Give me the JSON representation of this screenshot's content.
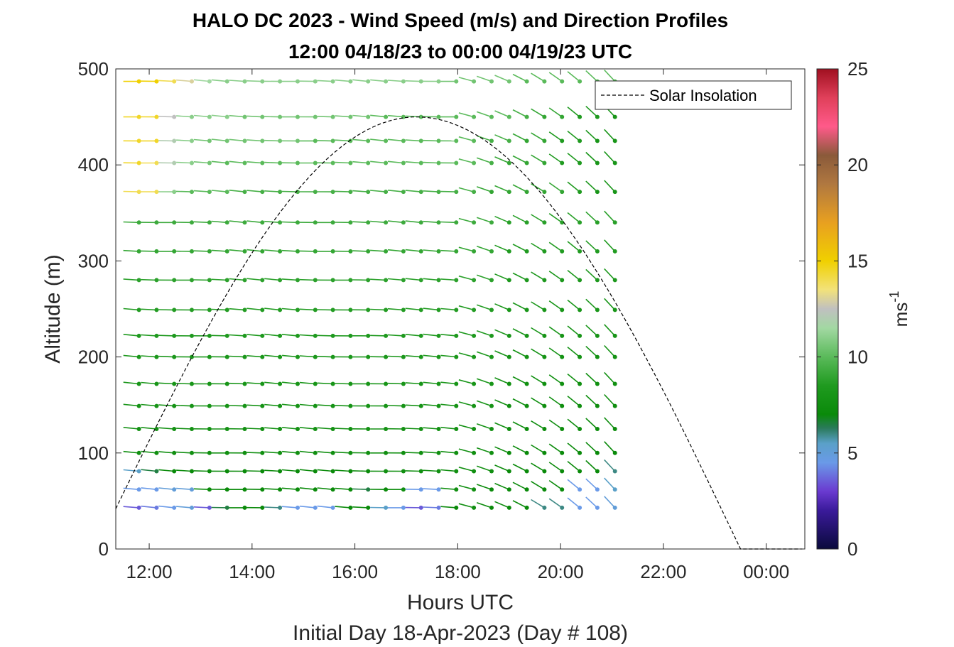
{
  "chart_data": {
    "type": "wind-barb-profile",
    "title": "HALO DC 2023 - Wind Speed (m/s) and Direction Profiles",
    "subtitle": "12:00 04/18/23 to 00:00 04/19/23  UTC",
    "xlabel": "Hours UTC",
    "xlabel2": "Initial Day 18-Apr-2023 (Day # 108)",
    "ylabel": "Altitude (m)",
    "x_tick_labels": [
      "12:00",
      "14:00",
      "16:00",
      "18:00",
      "20:00",
      "22:00",
      "00:00"
    ],
    "x_ticks_hours": [
      12,
      14,
      16,
      18,
      20,
      22,
      24
    ],
    "xlim_hours": [
      11.35,
      24.75
    ],
    "ylim": [
      0,
      500
    ],
    "y_ticks": [
      0,
      100,
      200,
      300,
      400,
      500
    ],
    "colorbar": {
      "label": "ms",
      "label_exponent": "-1",
      "range": [
        0,
        25
      ],
      "ticks": [
        0,
        5,
        10,
        15,
        20,
        25
      ],
      "stops": [
        {
          "v": 0,
          "color": "#0a0a3c"
        },
        {
          "v": 2,
          "color": "#3a1a9a"
        },
        {
          "v": 3,
          "color": "#6a3ad0"
        },
        {
          "v": 4.5,
          "color": "#6a9ae8"
        },
        {
          "v": 5.5,
          "color": "#5aa0c8"
        },
        {
          "v": 6.3,
          "color": "#2a7a5a"
        },
        {
          "v": 7,
          "color": "#0a8a0a"
        },
        {
          "v": 8.5,
          "color": "#1f9a1f"
        },
        {
          "v": 10,
          "color": "#5aba5a"
        },
        {
          "v": 11.5,
          "color": "#a2d8a2"
        },
        {
          "v": 12.5,
          "color": "#c0c0c0"
        },
        {
          "v": 13.5,
          "color": "#f2e27a"
        },
        {
          "v": 15,
          "color": "#f0d000"
        },
        {
          "v": 17,
          "color": "#e8a020"
        },
        {
          "v": 19,
          "color": "#b07840"
        },
        {
          "v": 20.5,
          "color": "#8a5a3a"
        },
        {
          "v": 22,
          "color": "#ff5a8a"
        },
        {
          "v": 23.5,
          "color": "#e0405a"
        },
        {
          "v": 25,
          "color": "#a01020"
        }
      ]
    },
    "legend": {
      "label": "Solar Insolation",
      "placement": "top-right"
    },
    "solar_insolation": {
      "x_hours": [
        11.35,
        17.2,
        23.5,
        24.7
      ],
      "y_altitude": [
        42,
        450,
        0,
        0
      ]
    },
    "altitudes": [
      43,
      62,
      81,
      100,
      125,
      149,
      172,
      200,
      222,
      249,
      280,
      310,
      340,
      372,
      402,
      425,
      450,
      487
    ],
    "time_hours_start": 11.8,
    "time_hours_step": 0.3,
    "time_steps": 34,
    "speed_profile_low": [
      {
        "h": 43,
        "s": [
          3.5,
          4,
          4.5,
          5,
          3.5,
          6.5,
          7,
          7,
          6,
          4.5,
          4.5,
          4.5,
          7,
          7,
          5.5,
          4.5,
          3.5,
          4,
          7,
          7.5,
          7,
          7,
          7,
          6,
          6,
          4.5,
          4.5,
          5
        ]
      },
      {
        "h": 62,
        "s": [
          4.5,
          4.5,
          5,
          5,
          7,
          7,
          7,
          7,
          7,
          7,
          7,
          7,
          7,
          6.5,
          7,
          7.5,
          4.5,
          4.5,
          7.5,
          7.5,
          7,
          7,
          7,
          7,
          7,
          4.5,
          4.5,
          5.5
        ]
      },
      {
        "h": 81,
        "s": [
          5.5,
          6.5,
          7,
          7,
          7,
          7,
          7,
          7,
          7,
          7,
          7,
          7,
          7,
          7,
          7.5,
          7.5,
          7.5,
          7.5,
          7.5,
          7.5,
          7.5,
          7,
          7,
          7,
          7,
          7,
          7,
          6
        ]
      }
    ],
    "speed_profile_top": [
      {
        "h": 372,
        "s": [
          14,
          14,
          11,
          10,
          10,
          10,
          9.5,
          9.5,
          9.5,
          9.5,
          9.5,
          9.5,
          9.5,
          9.5,
          9.5,
          9.5,
          9.5,
          9.5,
          9.5,
          9.5,
          9,
          9,
          9,
          9,
          9,
          8.5,
          8,
          8
        ]
      },
      {
        "h": 402,
        "s": [
          14.5,
          14,
          12,
          11,
          10.5,
          10,
          10,
          10,
          10,
          10,
          10,
          10,
          10,
          10,
          10,
          10,
          10,
          10,
          10,
          10,
          9.5,
          9,
          9,
          9,
          8.5,
          8.5,
          8,
          8
        ]
      },
      {
        "h": 425,
        "s": [
          14.5,
          14.5,
          12,
          11,
          10.5,
          10.5,
          10.5,
          10.5,
          10.5,
          10.5,
          10,
          10,
          10,
          10,
          10,
          10,
          10,
          10,
          10,
          10,
          9.5,
          9.5,
          9,
          9,
          8.5,
          8.5,
          8,
          8
        ]
      },
      {
        "h": 450,
        "s": [
          14.5,
          14.5,
          12.5,
          11,
          11,
          11,
          10.5,
          10.5,
          10.5,
          10.5,
          10.5,
          10.5,
          10.5,
          10.5,
          10,
          10,
          10,
          10,
          10,
          10,
          10,
          10,
          9.5,
          9,
          9,
          8.5,
          8.5,
          8
        ]
      },
      {
        "h": 487,
        "s": [
          15,
          15,
          14,
          13,
          11.5,
          11,
          11,
          11,
          11,
          11,
          11,
          11,
          11,
          11,
          11,
          11,
          11,
          11,
          10.5,
          10.5,
          10.5,
          10.5,
          10,
          10,
          10,
          10,
          10,
          10
        ]
      }
    ]
  }
}
